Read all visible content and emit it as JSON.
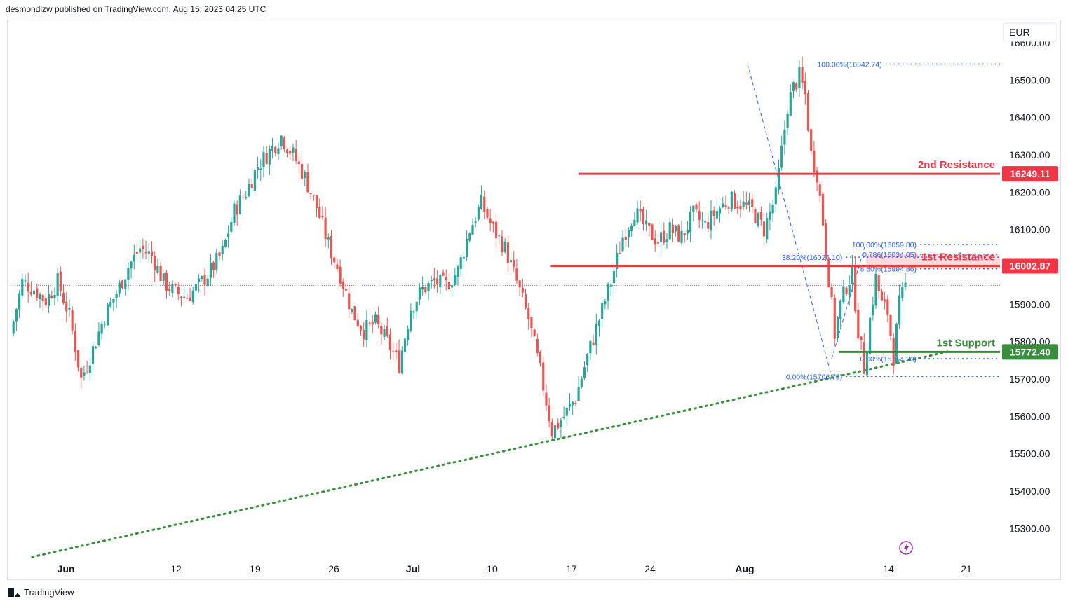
{
  "header": {
    "text": "desmondlzw published on TradingView.com, Aug 15, 2023 04:25 UTC"
  },
  "footer": {
    "brand": "TradingView"
  },
  "colors": {
    "up": "#26a69a",
    "down": "#ef5350",
    "resistance": "#f23645",
    "support": "#388e3c",
    "fib": "#2962ff",
    "trend": "#388e3c",
    "price_line": "#ef5350"
  },
  "chart_data": {
    "type": "candlestick",
    "currency": "EUR",
    "ylim": [
      15220,
      16660
    ],
    "y_ticks": [
      15300,
      15400,
      15500,
      15600,
      15700,
      15800,
      15900,
      16000,
      16100,
      16200,
      16300,
      16400,
      16500,
      16600
    ],
    "y_tick_labels": [
      "15300.00",
      "15400.00",
      "15500.00",
      "15600.00",
      "15700.00",
      "15800.00",
      "15900.00",
      "16000.00",
      "16100.00",
      "16200.00",
      "16300.00",
      "16400.00",
      "16500.00",
      "16600.00"
    ],
    "x_ticks": [
      {
        "label": "Jun",
        "bold": true,
        "index": 0
      },
      {
        "label": "12",
        "bold": false,
        "index": 1
      },
      {
        "label": "19",
        "bold": false,
        "index": 2
      },
      {
        "label": "26",
        "bold": false,
        "index": 3
      },
      {
        "label": "Jul",
        "bold": true,
        "index": 4
      },
      {
        "label": "10",
        "bold": false,
        "index": 5
      },
      {
        "label": "17",
        "bold": false,
        "index": 6
      },
      {
        "label": "24",
        "bold": false,
        "index": 7
      },
      {
        "label": "Aug",
        "bold": true,
        "index": 8
      },
      {
        "label": "14",
        "bold": false,
        "index": 9
      },
      {
        "label": "21",
        "bold": false,
        "index": 10
      }
    ],
    "current_price": 15950,
    "close_points": [
      [
        0,
        15820
      ],
      [
        4,
        15960
      ],
      [
        8,
        15940
      ],
      [
        12,
        15910
      ],
      [
        16,
        15960
      ],
      [
        20,
        15870
      ],
      [
        24,
        15700
      ],
      [
        28,
        15780
      ],
      [
        32,
        15870
      ],
      [
        36,
        15930
      ],
      [
        40,
        16000
      ],
      [
        44,
        16050
      ],
      [
        48,
        16030
      ],
      [
        52,
        15960
      ],
      [
        56,
        15930
      ],
      [
        60,
        15920
      ],
      [
        64,
        15950
      ],
      [
        68,
        15990
      ],
      [
        72,
        16040
      ],
      [
        76,
        16150
      ],
      [
        80,
        16200
      ],
      [
        84,
        16270
      ],
      [
        88,
        16310
      ],
      [
        92,
        16350
      ],
      [
        96,
        16300
      ],
      [
        100,
        16240
      ],
      [
        104,
        16160
      ],
      [
        108,
        16060
      ],
      [
        112,
        15980
      ],
      [
        116,
        15880
      ],
      [
        120,
        15830
      ],
      [
        124,
        15850
      ],
      [
        128,
        15800
      ],
      [
        132,
        15740
      ],
      [
        136,
        15890
      ],
      [
        140,
        15940
      ],
      [
        144,
        15960
      ],
      [
        148,
        15950
      ],
      [
        152,
        15990
      ],
      [
        156,
        16100
      ],
      [
        160,
        16170
      ],
      [
        164,
        16100
      ],
      [
        168,
        16050
      ],
      [
        172,
        15960
      ],
      [
        176,
        15860
      ],
      [
        180,
        15720
      ],
      [
        184,
        15560
      ],
      [
        188,
        15600
      ],
      [
        192,
        15650
      ],
      [
        196,
        15760
      ],
      [
        200,
        15860
      ],
      [
        204,
        15960
      ],
      [
        208,
        16080
      ],
      [
        212,
        16150
      ],
      [
        216,
        16100
      ],
      [
        220,
        16070
      ],
      [
        224,
        16100
      ],
      [
        228,
        16080
      ],
      [
        232,
        16140
      ],
      [
        236,
        16110
      ],
      [
        240,
        16150
      ],
      [
        244,
        16180
      ],
      [
        248,
        16170
      ],
      [
        252,
        16150
      ],
      [
        256,
        16100
      ],
      [
        260,
        16190
      ],
      [
        262,
        16310
      ],
      [
        264,
        16430
      ],
      [
        266,
        16480
      ],
      [
        268,
        16510
      ],
      [
        270,
        16460
      ],
      [
        272,
        16300
      ],
      [
        274,
        16250
      ],
      [
        276,
        16120
      ],
      [
        278,
        15970
      ],
      [
        280,
        15820
      ],
      [
        282,
        15900
      ],
      [
        284,
        15950
      ],
      [
        286,
        15980
      ],
      [
        288,
        15830
      ],
      [
        290,
        15730
      ],
      [
        292,
        15860
      ],
      [
        294,
        15970
      ],
      [
        296,
        15900
      ],
      [
        298,
        15880
      ],
      [
        300,
        15760
      ],
      [
        302,
        15900
      ],
      [
        304,
        15950
      ]
    ],
    "trendline": {
      "from": [
        15224,
        0.0
      ],
      "to": [
        15775,
        1.0
      ]
    },
    "levels": [
      {
        "name": "2nd Resistance",
        "price": 16249.11,
        "label": "16249.11",
        "kind": "resistance",
        "start_frac": 0.574
      },
      {
        "name": "1st Resistance",
        "price": 16002.87,
        "label": "16002.87",
        "kind": "resistance",
        "start_frac": 0.546
      },
      {
        "name": "1st Support",
        "price": 15772.4,
        "label": "15772.40",
        "kind": "support",
        "start_frac": 0.837
      }
    ],
    "level_names": [
      "2nd Resistance",
      "1st Resistance",
      "1st Support"
    ],
    "fib1": {
      "labels": [
        "100.00%(16542.74)",
        "38.20%(16026.10)",
        "0.00%(15706.75)"
      ],
      "prices": [
        16542.74,
        16026.1,
        15706.75
      ],
      "start_frac": [
        0.7,
        0.66,
        0.66
      ]
    },
    "fib2": {
      "labels": [
        "100.00%(16059.80)",
        "0.786(16034.05)",
        "78.60%(15994.86)",
        "0.00%(15754.30)"
      ],
      "prices": [
        16059.8,
        16034.05,
        15994.86,
        15754.3
      ],
      "start_frac": [
        0.82,
        0.82,
        0.82,
        0.82
      ]
    }
  }
}
